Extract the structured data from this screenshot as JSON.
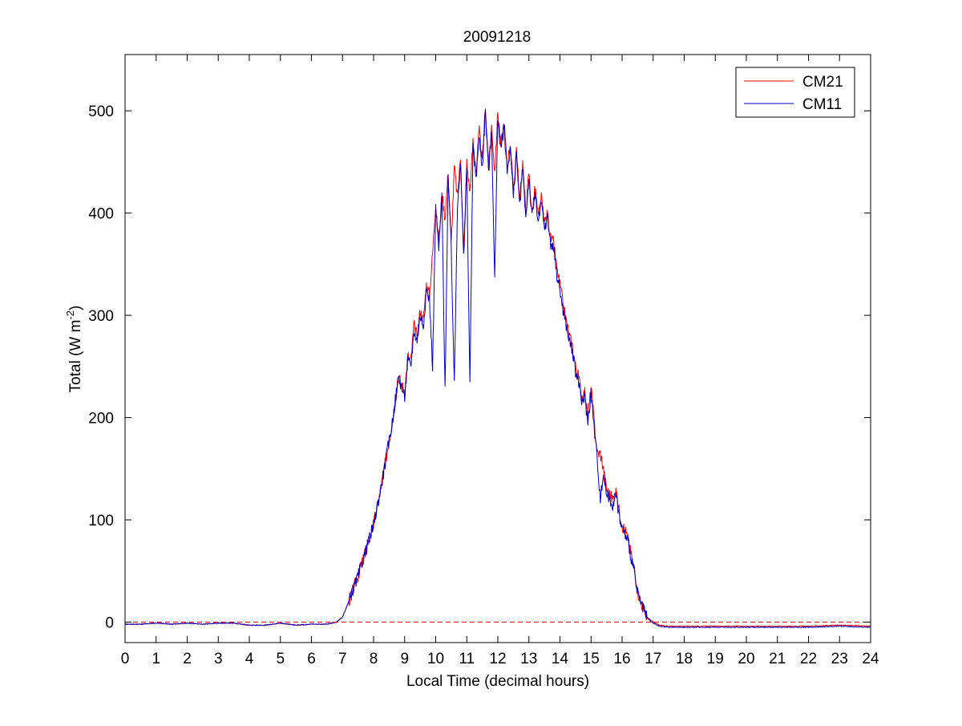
{
  "chart_data": {
    "type": "line",
    "title": "20091218",
    "xlabel": "Local Time (decimal hours)",
    "ylabel": "Total (W m",
    "ylabel_sup": "-2",
    "ylabel_suffix": ")",
    "xlim": [
      0,
      24
    ],
    "ylim": [
      -20,
      555
    ],
    "xticks": [
      0,
      1,
      2,
      3,
      4,
      5,
      6,
      7,
      8,
      9,
      10,
      11,
      12,
      13,
      14,
      15,
      16,
      17,
      18,
      19,
      20,
      21,
      22,
      23,
      24
    ],
    "yticks": [
      0,
      100,
      200,
      300,
      400,
      500
    ],
    "grid": false,
    "legend_position": "top-right",
    "reference_line": {
      "y": 0,
      "style": "dashed",
      "color": "#cc0000"
    },
    "series": [
      {
        "name": "CM21",
        "color": "#ff0000",
        "x": [
          0,
          0.5,
          1,
          1.5,
          2,
          2.5,
          3,
          3.5,
          4,
          4.5,
          5,
          5.5,
          6,
          6.5,
          6.8,
          7.0,
          7.2,
          7.5,
          7.8,
          8.0,
          8.2,
          8.4,
          8.6,
          8.8,
          9.0,
          9.1,
          9.2,
          9.3,
          9.4,
          9.5,
          9.6,
          9.7,
          9.8,
          9.9,
          10.0,
          10.1,
          10.2,
          10.3,
          10.4,
          10.5,
          10.6,
          10.7,
          10.8,
          10.9,
          11.0,
          11.1,
          11.2,
          11.3,
          11.4,
          11.5,
          11.6,
          11.7,
          11.8,
          11.9,
          12.0,
          12.1,
          12.2,
          12.3,
          12.4,
          12.5,
          12.6,
          12.7,
          12.8,
          12.9,
          13.0,
          13.1,
          13.2,
          13.3,
          13.4,
          13.5,
          13.6,
          13.7,
          13.8,
          13.9,
          14.0,
          14.1,
          14.2,
          14.3,
          14.4,
          14.5,
          14.6,
          14.7,
          14.8,
          14.9,
          15.0,
          15.1,
          15.2,
          15.3,
          15.4,
          15.5,
          15.6,
          15.7,
          15.8,
          15.9,
          16.0,
          16.1,
          16.2,
          16.3,
          16.4,
          16.5,
          16.6,
          16.8,
          17.0,
          17.2,
          17.5,
          18,
          19,
          20,
          21,
          22,
          23,
          24
        ],
        "values": [
          -2,
          -2,
          -1,
          -2,
          -1,
          -2,
          -1,
          -1,
          -3,
          -3,
          -1,
          -3,
          -2,
          -2,
          0,
          5,
          20,
          45,
          75,
          95,
          125,
          160,
          195,
          240,
          225,
          260,
          255,
          290,
          280,
          305,
          295,
          330,
          320,
          360,
          410,
          370,
          420,
          395,
          440,
          370,
          445,
          415,
          455,
          360,
          450,
          420,
          470,
          440,
          480,
          450,
          505,
          445,
          485,
          440,
          500,
          465,
          490,
          445,
          470,
          420,
          465,
          410,
          450,
          400,
          440,
          400,
          425,
          395,
          415,
          390,
          400,
          375,
          370,
          345,
          330,
          310,
          295,
          280,
          270,
          250,
          240,
          220,
          225,
          200,
          230,
          195,
          165,
          165,
          150,
          130,
          125,
          120,
          128,
          110,
          95,
          90,
          80,
          65,
          50,
          30,
          20,
          5,
          0,
          -3,
          -4,
          -4,
          -4,
          -4,
          -4,
          -4,
          -3,
          -4
        ],
        "interpolation_noise": 6
      },
      {
        "name": "CM11",
        "color": "#0000cc",
        "x": [
          0,
          0.5,
          1,
          1.5,
          2,
          2.5,
          3,
          3.5,
          4,
          4.5,
          5,
          5.5,
          6,
          6.5,
          6.8,
          7.0,
          7.2,
          7.5,
          7.8,
          8.0,
          8.2,
          8.4,
          8.6,
          8.8,
          9.0,
          9.1,
          9.2,
          9.3,
          9.4,
          9.5,
          9.6,
          9.7,
          9.8,
          9.9,
          10.0,
          10.1,
          10.2,
          10.3,
          10.4,
          10.5,
          10.6,
          10.7,
          10.8,
          10.9,
          11.0,
          11.1,
          11.2,
          11.3,
          11.4,
          11.5,
          11.6,
          11.7,
          11.8,
          11.9,
          12.0,
          12.1,
          12.2,
          12.3,
          12.4,
          12.5,
          12.6,
          12.7,
          12.8,
          12.9,
          13.0,
          13.1,
          13.2,
          13.3,
          13.4,
          13.5,
          13.6,
          13.7,
          13.8,
          13.9,
          14.0,
          14.1,
          14.2,
          14.3,
          14.4,
          14.5,
          14.6,
          14.7,
          14.8,
          14.9,
          15.0,
          15.1,
          15.2,
          15.3,
          15.4,
          15.5,
          15.6,
          15.7,
          15.8,
          15.9,
          16.0,
          16.1,
          16.2,
          16.3,
          16.4,
          16.5,
          16.6,
          16.8,
          17.0,
          17.2,
          17.5,
          18,
          19,
          20,
          21,
          22,
          23,
          24
        ],
        "values": [
          -2,
          -2,
          -1,
          -2,
          -1,
          -2,
          -1,
          -1,
          -3,
          -3,
          -1,
          -3,
          -2,
          -2,
          0,
          5,
          20,
          45,
          75,
          95,
          125,
          160,
          195,
          240,
          220,
          255,
          250,
          285,
          275,
          300,
          290,
          325,
          315,
          250,
          405,
          365,
          415,
          225,
          435,
          365,
          230,
          410,
          450,
          355,
          445,
          230,
          465,
          435,
          475,
          445,
          500,
          440,
          480,
          335,
          495,
          460,
          485,
          440,
          465,
          415,
          460,
          405,
          445,
          395,
          435,
          395,
          420,
          390,
          410,
          385,
          395,
          370,
          365,
          340,
          325,
          305,
          290,
          275,
          265,
          245,
          235,
          215,
          220,
          195,
          225,
          190,
          160,
          120,
          145,
          125,
          120,
          115,
          125,
          105,
          92,
          85,
          78,
          62,
          48,
          28,
          18,
          4,
          -1,
          -4,
          -5,
          -5,
          -5,
          -5,
          -5,
          -5,
          -4,
          -5
        ],
        "interpolation_noise": 6
      }
    ]
  }
}
